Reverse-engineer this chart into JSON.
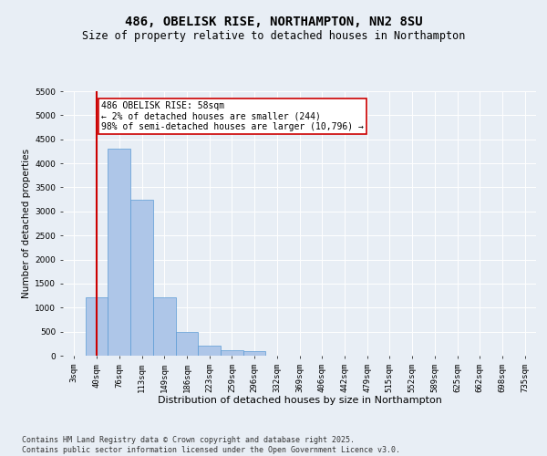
{
  "title1": "486, OBELISK RISE, NORTHAMPTON, NN2 8SU",
  "title2": "Size of property relative to detached houses in Northampton",
  "xlabel": "Distribution of detached houses by size in Northampton",
  "ylabel": "Number of detached properties",
  "categories": [
    "3sqm",
    "40sqm",
    "76sqm",
    "113sqm",
    "149sqm",
    "186sqm",
    "223sqm",
    "259sqm",
    "296sqm",
    "332sqm",
    "369sqm",
    "406sqm",
    "442sqm",
    "479sqm",
    "515sqm",
    "552sqm",
    "589sqm",
    "625sqm",
    "662sqm",
    "698sqm",
    "735sqm"
  ],
  "bar_values": [
    0,
    1220,
    4300,
    3250,
    1220,
    490,
    200,
    120,
    100,
    0,
    0,
    0,
    0,
    0,
    0,
    0,
    0,
    0,
    0,
    0,
    0
  ],
  "bar_color": "#aec6e8",
  "bar_edge_color": "#5b9bd5",
  "ylim": [
    0,
    5500
  ],
  "yticks": [
    0,
    500,
    1000,
    1500,
    2000,
    2500,
    3000,
    3500,
    4000,
    4500,
    5000,
    5500
  ],
  "vline_color": "#cc0000",
  "annotation_text": "486 OBELISK RISE: 58sqm\n← 2% of detached houses are smaller (244)\n98% of semi-detached houses are larger (10,796) →",
  "annotation_box_edge": "#cc0000",
  "footnote": "Contains HM Land Registry data © Crown copyright and database right 2025.\nContains public sector information licensed under the Open Government Licence v3.0.",
  "bg_color": "#e8eef5",
  "plot_bg_color": "#e8eef5",
  "grid_color": "#ffffff",
  "title1_fontsize": 10,
  "title2_fontsize": 8.5,
  "xlabel_fontsize": 8,
  "ylabel_fontsize": 7.5,
  "tick_fontsize": 6.5,
  "annotation_fontsize": 7,
  "footnote_fontsize": 6
}
